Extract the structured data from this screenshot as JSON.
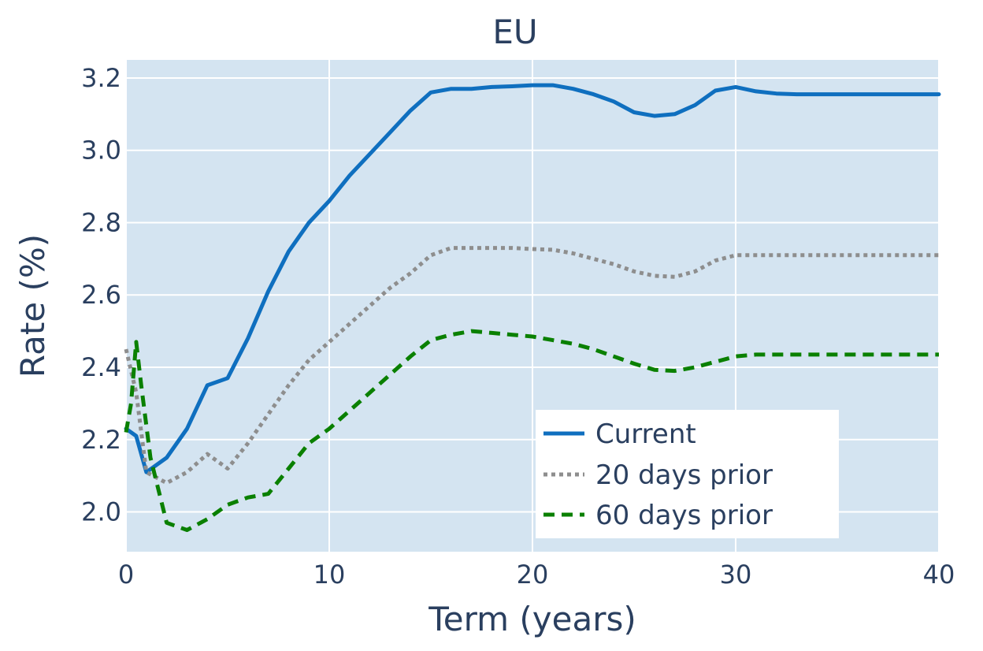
{
  "chart_data": {
    "type": "line",
    "title": "EU",
    "xlabel": "Term (years)",
    "ylabel": "Rate (%)",
    "xlim": [
      0,
      40
    ],
    "ylim": [
      1.89,
      3.25
    ],
    "xticks": [
      0,
      10,
      20,
      30,
      40
    ],
    "xtick_labels": [
      "0",
      "10",
      "20",
      "30",
      "40"
    ],
    "yticks": [
      2.0,
      2.2,
      2.4,
      2.6,
      2.8,
      3.0,
      3.2
    ],
    "ytick_labels": [
      "2.0",
      "2.2",
      "2.4",
      "2.6",
      "2.8",
      "3.0",
      "3.2"
    ],
    "grid": true,
    "plot_background": "#d4e4f1",
    "legend_position": "bottom-right",
    "series": [
      {
        "name": "Current",
        "color": "#0f6fbf",
        "dash": "solid",
        "x": [
          0,
          0.5,
          1,
          2,
          3,
          4,
          5,
          6,
          7,
          8,
          9,
          10,
          11,
          12,
          13,
          14,
          15,
          16,
          17,
          18,
          19,
          20,
          21,
          22,
          23,
          24,
          25,
          26,
          27,
          28,
          29,
          30,
          31,
          32,
          33,
          34,
          35,
          36,
          37,
          38,
          39,
          40
        ],
        "y": [
          2.23,
          2.21,
          2.11,
          2.15,
          2.23,
          2.35,
          2.37,
          2.48,
          2.61,
          2.72,
          2.8,
          2.86,
          2.93,
          2.99,
          3.05,
          3.11,
          3.16,
          3.17,
          3.17,
          3.175,
          3.177,
          3.18,
          3.18,
          3.17,
          3.155,
          3.135,
          3.105,
          3.095,
          3.1,
          3.125,
          3.165,
          3.175,
          3.163,
          3.157,
          3.155,
          3.155,
          3.155,
          3.155,
          3.155,
          3.155,
          3.155,
          3.155
        ]
      },
      {
        "name": "20 days prior",
        "color": "#8e8e8e",
        "dash": "dot",
        "x": [
          0,
          0.5,
          1,
          2,
          3,
          4,
          5,
          6,
          7,
          8,
          9,
          10,
          11,
          12,
          13,
          14,
          15,
          16,
          17,
          18,
          19,
          20,
          21,
          22,
          23,
          24,
          25,
          26,
          27,
          28,
          29,
          30,
          31,
          32,
          33,
          34,
          35,
          36,
          37,
          38,
          39,
          40
        ],
        "y": [
          2.45,
          2.33,
          2.11,
          2.08,
          2.11,
          2.16,
          2.12,
          2.19,
          2.27,
          2.35,
          2.42,
          2.47,
          2.52,
          2.57,
          2.62,
          2.66,
          2.71,
          2.73,
          2.73,
          2.73,
          2.73,
          2.727,
          2.725,
          2.715,
          2.7,
          2.685,
          2.665,
          2.653,
          2.65,
          2.665,
          2.695,
          2.71,
          2.71,
          2.71,
          2.71,
          2.71,
          2.71,
          2.71,
          2.71,
          2.71,
          2.71,
          2.71
        ]
      },
      {
        "name": "60 days prior",
        "color": "#0a8000",
        "dash": "dash",
        "x": [
          0,
          0.25,
          0.5,
          0.75,
          1.2,
          2,
          3,
          4,
          5,
          6,
          7,
          8,
          9,
          10,
          11,
          12,
          13,
          14,
          15,
          16,
          17,
          18,
          19,
          20,
          21,
          22,
          23,
          24,
          25,
          26,
          27,
          28,
          29,
          30,
          31,
          32,
          33,
          34,
          35,
          36,
          37,
          38,
          39,
          40
        ],
        "y": [
          2.22,
          2.3,
          2.47,
          2.35,
          2.15,
          1.97,
          1.95,
          1.98,
          2.02,
          2.04,
          2.05,
          2.12,
          2.19,
          2.23,
          2.28,
          2.33,
          2.38,
          2.43,
          2.475,
          2.49,
          2.5,
          2.495,
          2.49,
          2.485,
          2.475,
          2.465,
          2.45,
          2.43,
          2.41,
          2.393,
          2.39,
          2.4,
          2.415,
          2.43,
          2.435,
          2.435,
          2.435,
          2.435,
          2.435,
          2.435,
          2.435,
          2.435,
          2.435,
          2.435
        ]
      }
    ]
  }
}
